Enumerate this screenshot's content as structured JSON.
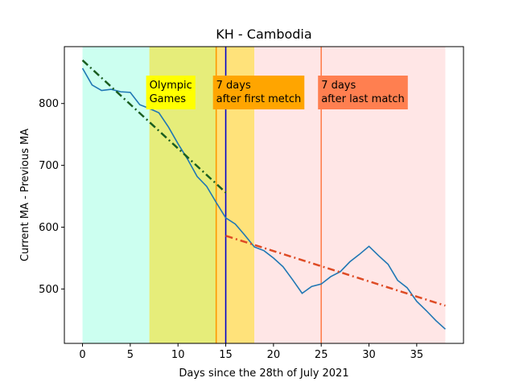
{
  "chart_data": {
    "type": "line",
    "title": "KH - Cambodia",
    "xlabel": "Days since the 28th of July 2021",
    "ylabel": "Current MA - Previous MA",
    "xlim": [
      -1.9,
      39.9
    ],
    "ylim": [
      412,
      892
    ],
    "xticks": [
      0,
      5,
      10,
      15,
      20,
      25,
      30,
      35
    ],
    "yticks": [
      500,
      600,
      700,
      800
    ],
    "grid": false,
    "series": [
      {
        "color": "#1f77b4",
        "x": [
          0,
          1,
          2,
          3,
          4,
          5,
          6,
          7,
          8,
          9,
          10,
          11,
          12,
          13,
          14,
          15,
          16,
          17,
          18,
          19,
          20,
          21,
          22,
          23,
          24,
          25,
          26,
          27,
          28,
          29,
          30,
          31,
          32,
          33,
          34,
          35,
          36,
          37,
          38
        ],
        "y": [
          857,
          830,
          821,
          823,
          819,
          818,
          798,
          792,
          785,
          762,
          735,
          710,
          682,
          666,
          640,
          615,
          605,
          587,
          568,
          562,
          550,
          536,
          515,
          493,
          504,
          508,
          520,
          528,
          544,
          556,
          569,
          554,
          540,
          514,
          502,
          480,
          465,
          449,
          435
        ]
      }
    ],
    "trend_lines": [
      {
        "color": "#1a5e20",
        "x": [
          0,
          15
        ],
        "y": [
          870,
          656
        ]
      },
      {
        "color": "#de4b25",
        "x": [
          15,
          38
        ],
        "y": [
          586,
          473
        ]
      }
    ],
    "bands": [
      {
        "x": [
          0,
          7
        ],
        "color": "#ccfff0"
      },
      {
        "x": [
          7,
          14
        ],
        "color": "#e6ed7a"
      },
      {
        "x": [
          14,
          18
        ],
        "color": "#ffe27a"
      },
      {
        "x": [
          18,
          38
        ],
        "color": "#ffe6e6"
      }
    ],
    "vlines": [
      {
        "x": 14,
        "color": "#ff9900"
      },
      {
        "x": 15,
        "color": "#0000cc"
      },
      {
        "x": 25,
        "color": "#ff7f50"
      }
    ],
    "annotations": [
      {
        "lines": [
          "Olympic",
          "Games"
        ],
        "x": 7,
        "color": "#ffff00"
      },
      {
        "lines": [
          "7 days",
          "after first metch"
        ],
        "x": 14,
        "color": "#ffa500"
      },
      {
        "lines": [
          "7 days",
          "after last match"
        ],
        "x": 25,
        "color": "#ff7f50"
      }
    ]
  }
}
